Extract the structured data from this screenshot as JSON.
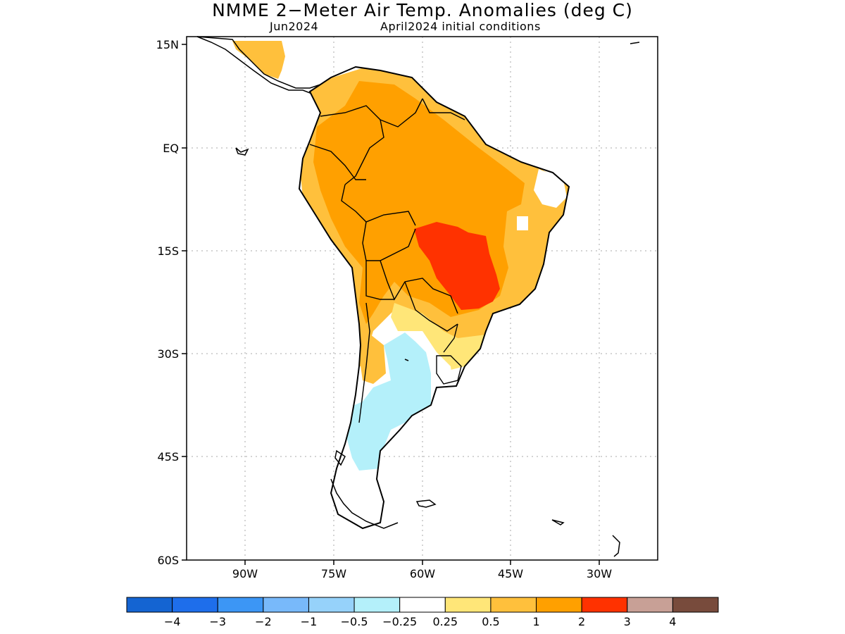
{
  "title": "NMME 2−Meter Air Temp. Anomalies (deg C)",
  "subtitle_left": "Jun2024",
  "subtitle_right": "April2024 initial conditions",
  "lat_labels": [
    "15N",
    "EQ",
    "15S",
    "30S",
    "45S",
    "60S"
  ],
  "lon_labels": [
    "90W",
    "75W",
    "60W",
    "45W",
    "30W"
  ],
  "colorbar": {
    "colors": [
      "#1464d2",
      "#1e6eeb",
      "#3c96f5",
      "#78b9fa",
      "#96d2fa",
      "#b4f0fa",
      "#ffffff",
      "#ffe678",
      "#ffc03c",
      "#ffa000",
      "#ff3200",
      "#c8a096",
      "#784b3c"
    ],
    "labels": [
      "−4",
      "−3",
      "−2",
      "−1",
      "−0.5",
      "−0.25",
      "0.25",
      "0.5",
      "1",
      "2",
      "3",
      "4"
    ]
  },
  "regions": {
    "colors": {
      "light_orange": "#ffc03c",
      "orange": "#ffa000",
      "red": "#ff3200",
      "yellow": "#ffe678",
      "light_blue": "#b4f0fa"
    }
  }
}
